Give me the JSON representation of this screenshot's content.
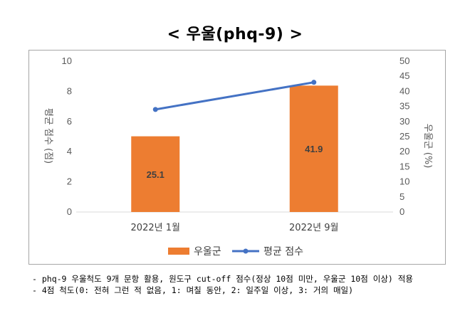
{
  "chart_data": {
    "type": "bar+line",
    "title": "< 우울(phq-9) >",
    "categories": [
      "2022년 1월",
      "2022년 9월"
    ],
    "series": [
      {
        "name": "우울군",
        "type": "bar",
        "axis": "right",
        "values": [
          25.1,
          41.9
        ],
        "data_labels": [
          "25.1",
          "41.9"
        ],
        "color": "#ED7D31"
      },
      {
        "name": "평균 점수",
        "type": "line",
        "axis": "left",
        "values": [
          6.8,
          8.6
        ],
        "color": "#4472C4"
      }
    ],
    "left_axis": {
      "label": "평균 점수",
      "unit": "(점)",
      "range": [
        0,
        10
      ],
      "ticks": [
        "0",
        "2",
        "4",
        "6",
        "8",
        "10"
      ]
    },
    "right_axis": {
      "label": "우울군",
      "unit": "(%)",
      "range": [
        0,
        50
      ],
      "ticks": [
        "0",
        "5",
        "10",
        "15",
        "20",
        "25",
        "30",
        "35",
        "40",
        "45",
        "50"
      ]
    },
    "grid": false,
    "legend": "bottom"
  },
  "notes": [
    "- phq-9 우울척도 9개 문항 활용, 원도구 cut-off 점수(정상 10점 미만, 우울군 10점 이상) 적용",
    "- 4점 척도(0: 전혀 그런 적 없음, 1: 며칠 동안, 2: 일주일 이상, 3: 거의 매일)"
  ]
}
